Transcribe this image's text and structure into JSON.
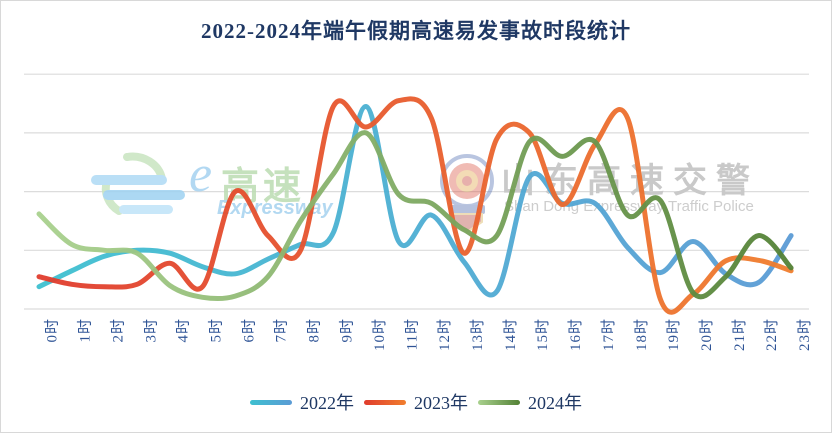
{
  "title": "2022-2024年端午假期高速易发事故时段统计",
  "colors": {
    "title_text": "#1f3864",
    "axis_label_text": "#2f5496",
    "gridline": "#dcdcdc",
    "legend_text": "#1f3864",
    "series_2022": [
      "#3ec0d0",
      "#5b9bd5"
    ],
    "series_2023": [
      "#e03c2d",
      "#f07e2e"
    ],
    "series_2024": [
      "#a9d18e",
      "#538135"
    ]
  },
  "watermarks": {
    "logo": {
      "e": "e",
      "cn": "高速",
      "en": "Expressway"
    },
    "police": {
      "cn": "山东高速交警",
      "en": "Shan Dong Expressway Traffic Police"
    }
  },
  "legend": {
    "items": [
      "2022年",
      "2023年",
      "2024年"
    ]
  },
  "chart_data": {
    "type": "line",
    "smoothed": true,
    "title": "2022-2024年端午假期高速易发事故时段统计",
    "xlabel": "",
    "ylabel": "",
    "x_categories": [
      "0时",
      "1时",
      "2时",
      "3时",
      "4时",
      "5时",
      "6时",
      "7时",
      "8时",
      "9时",
      "10时",
      "11时",
      "12时",
      "13时",
      "14时",
      "15时",
      "16时",
      "17时",
      "18时",
      "19时",
      "20时",
      "21时",
      "22时",
      "23时"
    ],
    "y_axis": {
      "tick_labels_visible": false,
      "gridline_values": [
        0,
        1,
        2,
        3,
        4
      ],
      "units": "relative: 1 = one gridline spacing (estimated, no labels shown)"
    },
    "grid": true,
    "legend_position": "bottom",
    "series": [
      {
        "name": "2022年",
        "gradient": [
          "#3ec0d0",
          "#5b9bd5"
        ],
        "values": [
          0.38,
          0.65,
          0.9,
          1.0,
          0.95,
          0.72,
          0.6,
          0.85,
          1.1,
          1.3,
          3.45,
          1.15,
          1.6,
          0.8,
          0.3,
          2.25,
          1.8,
          1.8,
          1.05,
          0.62,
          1.15,
          0.6,
          0.45,
          1.25
        ]
      },
      {
        "name": "2023年",
        "gradient": [
          "#e03c2d",
          "#f07e2e"
        ],
        "values": [
          0.55,
          0.42,
          0.38,
          0.42,
          0.78,
          0.38,
          2.0,
          1.25,
          1.0,
          3.45,
          3.1,
          3.55,
          3.25,
          0.95,
          2.9,
          3.0,
          1.78,
          2.8,
          3.25,
          0.17,
          0.25,
          0.82,
          0.83,
          0.65
        ]
      },
      {
        "name": "2024年",
        "gradient": [
          "#a9d18e",
          "#538135"
        ],
        "values": [
          1.62,
          1.1,
          1.0,
          0.95,
          0.4,
          0.2,
          0.22,
          0.55,
          1.5,
          2.3,
          3.0,
          1.95,
          1.8,
          1.35,
          1.25,
          2.85,
          2.6,
          2.85,
          1.6,
          1.85,
          0.28,
          0.55,
          1.25,
          0.7
        ]
      }
    ]
  }
}
